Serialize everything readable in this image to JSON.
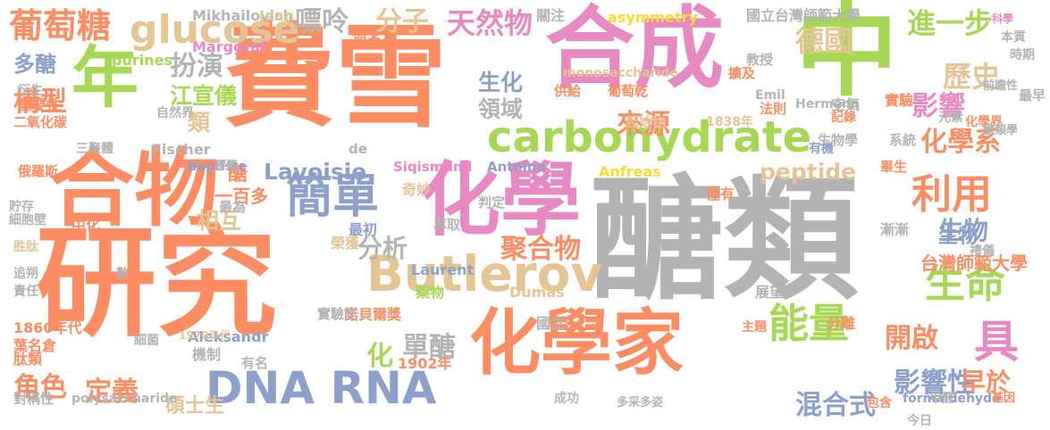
{
  "words": [
    {
      "text": "醣類",
      "color": "#b3b3b3"
    },
    {
      "text": "研究",
      "color": "#fc8d62"
    },
    {
      "text": "費雪",
      "color": "#fc8d62"
    },
    {
      "text": "合成",
      "color": "#e78ac3"
    },
    {
      "text": "中",
      "color": "#a6d854"
    },
    {
      "text": "合物",
      "color": "#fc8d62"
    },
    {
      "text": "化學",
      "color": "#e78ac3"
    },
    {
      "text": "化學家",
      "color": "#fc8d62"
    },
    {
      "text": "年",
      "color": "#a6d854"
    },
    {
      "text": "carbohydrate",
      "color": "#a6d854"
    },
    {
      "text": "Butlerov",
      "color": "#e5c494"
    },
    {
      "text": "DNA RNA",
      "color": "#8da0cb"
    },
    {
      "text": "簡單",
      "color": "#8da0cb"
    },
    {
      "text": "利用",
      "color": "#fc8d62"
    },
    {
      "text": "能量",
      "color": "#a6d854"
    },
    {
      "text": "生命",
      "color": "#a6d854"
    },
    {
      "text": "具",
      "color": "#e78ac3"
    },
    {
      "text": "葡萄糖",
      "color": "#fc8d62"
    },
    {
      "text": "glucose",
      "color": "#e5c494"
    },
    {
      "text": "嘌呤",
      "color": "#b3b3b3"
    },
    {
      "text": "分子",
      "color": "#e5c494"
    },
    {
      "text": "天然物",
      "color": "#e78ac3"
    },
    {
      "text": "進一步",
      "color": "#a6d854"
    },
    {
      "text": "德國",
      "color": "#e5c494"
    },
    {
      "text": "歷史",
      "color": "#e5c494"
    },
    {
      "text": "影響",
      "color": "#e78ac3"
    },
    {
      "text": "化學系",
      "color": "#fc8d62"
    },
    {
      "text": "構型",
      "color": "#fc8d62"
    },
    {
      "text": "多醣",
      "color": "#8da0cb"
    },
    {
      "text": "扮演",
      "color": "#b3b3b3"
    },
    {
      "text": "江宣儀",
      "color": "#a6d854"
    },
    {
      "text": "類",
      "color": "#e5c494"
    },
    {
      "text": "生化",
      "color": "#8da0cb"
    },
    {
      "text": "領域",
      "color": "#b3b3b3"
    },
    {
      "text": "醣",
      "color": "#fc8d62"
    },
    {
      "text": "Lavoisie",
      "color": "#8da0cb"
    },
    {
      "text": "來源",
      "color": "#fc8d62"
    },
    {
      "text": "peptide",
      "color": "#e5c494"
    },
    {
      "text": "生物",
      "color": "#8da0cb"
    },
    {
      "text": "分析",
      "color": "#b3b3b3"
    },
    {
      "text": "聚合物",
      "color": "#fc8d62"
    },
    {
      "text": "影響性",
      "color": "#8da0cb"
    },
    {
      "text": "開啟",
      "color": "#fc8d62"
    },
    {
      "text": "早於",
      "color": "#fc8d62"
    },
    {
      "text": "混合式",
      "color": "#8da0cb"
    },
    {
      "text": "單醣",
      "color": "#b3b3b3"
    },
    {
      "text": "角色",
      "color": "#fc8d62"
    },
    {
      "text": "定義",
      "color": "#fc8d62"
    },
    {
      "text": "碩士生",
      "color": "#e5c494"
    },
    {
      "text": "台灣師範大學",
      "color": "#fc8d62"
    },
    {
      "text": "相互",
      "color": "#e5c494"
    },
    {
      "text": "一百多",
      "color": "#fc8d62"
    },
    {
      "text": "Mikhailovich",
      "color": "#b3b3b3"
    },
    {
      "text": "Jean",
      "color": "#e5c494"
    },
    {
      "text": "asymmetry",
      "color": "#ffd92f"
    },
    {
      "text": "國立台灣師範大學",
      "color": "#b3b3b3"
    },
    {
      "text": "關注",
      "color": "#b3b3b3"
    },
    {
      "text": "科學",
      "color": "#e78ac3"
    },
    {
      "text": "本質",
      "color": "#b3b3b3"
    },
    {
      "text": "Marggraf",
      "color": "#e78ac3"
    },
    {
      "text": "purines",
      "color": "#a6d854"
    },
    {
      "text": "命名為",
      "color": "#fc8d62"
    },
    {
      "text": "monosaccharide",
      "color": "#e5c494"
    },
    {
      "text": "教授",
      "color": "#b3b3b3"
    },
    {
      "text": "擴及",
      "color": "#fc8d62"
    },
    {
      "text": "時期",
      "color": "#b3b3b3"
    },
    {
      "text": "最早",
      "color": "#b3b3b3"
    },
    {
      "text": "重要性",
      "color": "#fc8d62"
    },
    {
      "text": "衍生",
      "color": "#b3b3b3"
    },
    {
      "text": "二氧化碳",
      "color": "#fc8d62"
    },
    {
      "text": "三聚體",
      "color": "#b3b3b3"
    },
    {
      "text": "俄羅斯",
      "color": "#fc8d62"
    },
    {
      "text": "自然界",
      "color": "#b3b3b3"
    },
    {
      "text": "Fischer",
      "color": "#b3b3b3"
    },
    {
      "text": "Baptiste",
      "color": "#8da0cb"
    },
    {
      "text": "Siqismund",
      "color": "#e78ac3"
    },
    {
      "text": "Antoine",
      "color": "#8da0cb"
    },
    {
      "text": "Anfreas",
      "color": "#ffd92f"
    },
    {
      "text": "Emil",
      "color": "#b3b3b3"
    },
    {
      "text": "Hermann",
      "color": "#b3b3b3"
    },
    {
      "text": "元素",
      "color": "#b3b3b3"
    },
    {
      "text": "空氣",
      "color": "#b3b3b3"
    },
    {
      "text": "記錄",
      "color": "#fc8d62"
    },
    {
      "text": "實驗",
      "color": "#fc8d62"
    },
    {
      "text": "法則",
      "color": "#fc8d62"
    },
    {
      "text": "化學界",
      "color": "#fc8d62"
    },
    {
      "text": "生物學",
      "color": "#b3b3b3"
    },
    {
      "text": "有機",
      "color": "#8da0cb"
    },
    {
      "text": "畢生",
      "color": "#fc8d62"
    },
    {
      "text": "系統",
      "color": "#b3b3b3"
    },
    {
      "text": "葡萄乾",
      "color": "#fc8d62"
    },
    {
      "text": "起始物",
      "color": "#e5c494"
    },
    {
      "text": "供給",
      "color": "#fc8d62"
    },
    {
      "text": "1838年",
      "color": "#e5c494"
    },
    {
      "text": "奇妙",
      "color": "#e5c494"
    },
    {
      "text": "最為",
      "color": "#b3b3b3"
    },
    {
      "text": "最初",
      "color": "#8da0cb"
    },
    {
      "text": "榮獲",
      "color": "#e5c494"
    },
    {
      "text": "諾貝爾獎",
      "color": "#fc8d62"
    },
    {
      "text": "實驗室",
      "color": "#b3b3b3"
    },
    {
      "text": "萃取",
      "color": "#b3b3b3"
    },
    {
      "text": "判定",
      "color": "#b3b3b3"
    },
    {
      "text": "僅有",
      "color": "#fc8d62"
    },
    {
      "text": "Laurent",
      "color": "#8da0cb"
    },
    {
      "text": "Dumas",
      "color": "#e5c494"
    },
    {
      "text": "藥物",
      "color": "#a6d854"
    },
    {
      "text": "國立",
      "color": "#b3b3b3"
    },
    {
      "text": "漸漸",
      "color": "#b3b3b3"
    },
    {
      "text": "展望",
      "color": "#b3b3b3"
    },
    {
      "text": "分離",
      "color": "#fc8d62"
    },
    {
      "text": "主題",
      "color": "#fc8d62"
    },
    {
      "text": "1902年",
      "color": "#fc8d62"
    },
    {
      "text": "化",
      "color": "#a6d854"
    },
    {
      "text": "Aleksandr",
      "color": "#8da0cb"
    },
    {
      "text": "機制",
      "color": "#b3b3b3"
    },
    {
      "text": "有名",
      "color": "#b3b3b3"
    },
    {
      "text": "成功",
      "color": "#b3b3b3"
    },
    {
      "text": "1860年代",
      "color": "#fc8d62"
    },
    {
      "text": "葉名倉",
      "color": "#fc8d62"
    },
    {
      "text": "肽類",
      "color": "#fc8d62"
    },
    {
      "text": "責任",
      "color": "#b3b3b3"
    },
    {
      "text": "追朔",
      "color": "#b3b3b3"
    },
    {
      "text": "數",
      "color": "#b3b3b3"
    },
    {
      "text": "1970年代",
      "color": "#e5c494"
    },
    {
      "text": "對稱性",
      "color": "#b3b3b3"
    },
    {
      "text": "polysaccharide",
      "color": "#b3b3b3"
    },
    {
      "text": "formaldehyde",
      "color": "#8da0cb"
    },
    {
      "text": "今日",
      "color": "#b3b3b3"
    },
    {
      "text": "包含",
      "color": "#fc8d62"
    },
    {
      "text": "多采多姿",
      "color": "#b3b3b3"
    },
    {
      "text": "甲醛",
      "color": "#b3b3b3"
    },
    {
      "text": "生物",
      "color": "#8da0cb"
    },
    {
      "text": "中化",
      "color": "#fc8d62"
    },
    {
      "text": "de",
      "color": "#b3b3b3"
    },
    {
      "text": "禮儀",
      "color": "#b3b3b3"
    },
    {
      "text": "細菌",
      "color": "#b3b3b3"
    },
    {
      "text": "貯存",
      "color": "#b3b3b3"
    },
    {
      "text": "細胞壁",
      "color": "#b3b3b3"
    },
    {
      "text": "醣類學",
      "color": "#b3b3b3"
    },
    {
      "text": "前瞻性",
      "color": "#b3b3b3"
    },
    {
      "text": "基因",
      "color": "#fc8d62"
    },
    {
      "text": "膠類",
      "color": "#b3b3b3"
    },
    {
      "text": "胜肽",
      "color": "#e5c494"
    }
  ]
}
